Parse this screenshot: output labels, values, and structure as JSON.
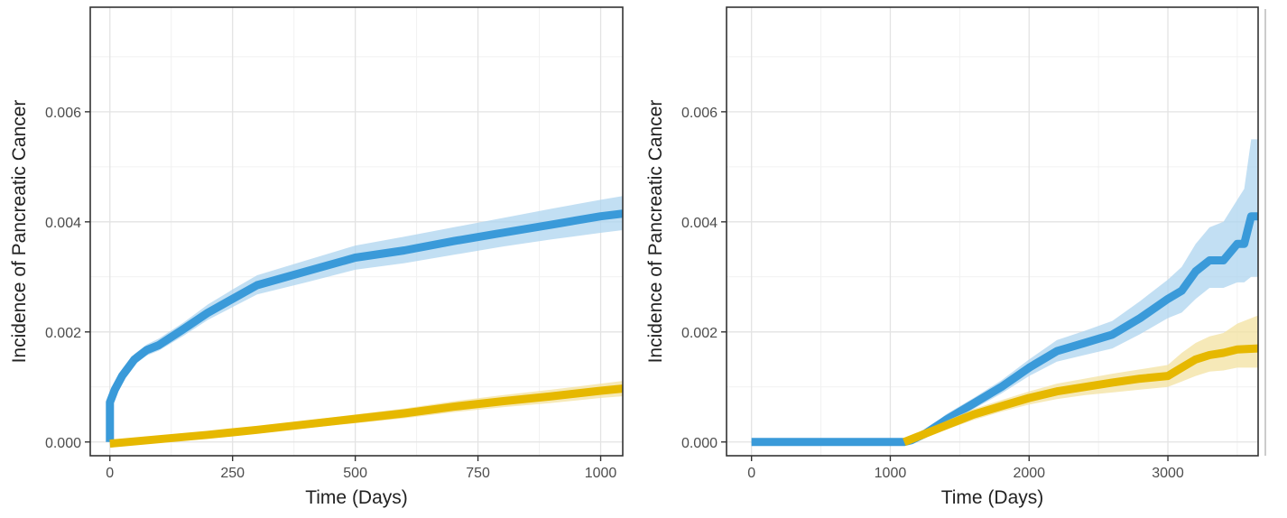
{
  "colors": {
    "series_a": "#3a9ad9",
    "series_a_band": "#aed4ef",
    "series_b": "#e6b800",
    "series_b_band": "#f3e1a0"
  },
  "chart_data": [
    {
      "type": "line",
      "xlabel": "Time (Days)",
      "ylabel": "Incidence of Pancreatic Cancer",
      "xlim": [
        -40,
        1045
      ],
      "ylim": [
        -0.00025,
        0.0079
      ],
      "xticks": [
        0,
        250,
        500,
        750,
        1000
      ],
      "xtick_labels": [
        "0",
        "250",
        "500",
        "750",
        "1000"
      ],
      "yticks": [
        0,
        0.002,
        0.004,
        0.006
      ],
      "ytick_labels": [
        "0.000",
        "0.002",
        "0.004",
        "0.006"
      ],
      "grid": true,
      "series": [
        {
          "color": "series_a",
          "x": [
            0,
            0,
            10,
            25,
            50,
            75,
            100,
            150,
            200,
            250,
            300,
            400,
            500,
            600,
            700,
            800,
            900,
            1000,
            1045
          ],
          "y": [
            0,
            0.00072,
            0.00095,
            0.0012,
            0.0015,
            0.00167,
            0.00176,
            0.00205,
            0.00235,
            0.0026,
            0.00285,
            0.0031,
            0.00335,
            0.00348,
            0.00365,
            0.0038,
            0.00395,
            0.0041,
            0.00415
          ],
          "lower": [
            0,
            0.00062,
            0.00085,
            0.0011,
            0.0014,
            0.00157,
            0.00166,
            0.00193,
            0.00222,
            0.00245,
            0.00268,
            0.0029,
            0.00313,
            0.00325,
            0.0034,
            0.00355,
            0.00368,
            0.0038,
            0.00385
          ],
          "upper": [
            0,
            0.00082,
            0.00105,
            0.0013,
            0.0016,
            0.00177,
            0.00188,
            0.00217,
            0.0025,
            0.00277,
            0.00303,
            0.0033,
            0.00357,
            0.00373,
            0.0039,
            0.00407,
            0.00424,
            0.0044,
            0.00447
          ]
        },
        {
          "color": "series_b",
          "x": [
            0,
            100,
            200,
            300,
            400,
            500,
            600,
            700,
            800,
            900,
            1000,
            1045
          ],
          "y": [
            -3e-05,
            5e-05,
            0.00013,
            0.00022,
            0.00032,
            0.00042,
            0.00052,
            0.00064,
            0.00074,
            0.00083,
            0.00093,
            0.00097
          ],
          "lower": [
            -8e-05,
            0.0,
            7e-05,
            0.00016,
            0.00025,
            0.00034,
            0.00043,
            0.00054,
            0.00063,
            0.00071,
            0.0008,
            0.00083
          ],
          "upper": [
            2e-05,
            0.0001,
            0.00019,
            0.00028,
            0.00039,
            0.0005,
            0.00061,
            0.00074,
            0.00085,
            0.00095,
            0.00106,
            0.00111
          ]
        }
      ]
    },
    {
      "type": "line",
      "xlabel": "Time (Days)",
      "ylabel": "Incidence of Pancreatic Cancer",
      "xlim": [
        -180,
        3650
      ],
      "ylim": [
        -0.00025,
        0.0079
      ],
      "xticks": [
        0,
        1000,
        2000,
        3000
      ],
      "xtick_labels": [
        "0",
        "1000",
        "2000",
        "3000"
      ],
      "yticks": [
        0,
        0.002,
        0.004,
        0.006
      ],
      "ytick_labels": [
        "0.000",
        "0.002",
        "0.004",
        "0.006"
      ],
      "grid": true,
      "series": [
        {
          "color": "series_a",
          "x": [
            0,
            1100,
            1150,
            1250,
            1400,
            1600,
            1800,
            2000,
            2200,
            2400,
            2600,
            2800,
            3000,
            3100,
            3200,
            3300,
            3400,
            3500,
            3550,
            3600,
            3650
          ],
          "y": [
            0,
            0,
            3e-05,
            0.00015,
            0.0004,
            0.0007,
            0.001,
            0.00135,
            0.00165,
            0.0018,
            0.00195,
            0.00225,
            0.0026,
            0.00275,
            0.0031,
            0.0033,
            0.0033,
            0.0036,
            0.0036,
            0.0041,
            0.0041
          ],
          "lower": [
            0,
            0,
            0.0,
            0.0001,
            0.0003,
            0.0006,
            0.00088,
            0.0012,
            0.00146,
            0.00158,
            0.0017,
            0.00196,
            0.00225,
            0.00235,
            0.0026,
            0.0028,
            0.0028,
            0.0029,
            0.0029,
            0.003,
            0.003
          ],
          "upper": [
            0,
            0,
            6e-05,
            0.0002,
            0.0005,
            0.0008,
            0.00112,
            0.0015,
            0.00185,
            0.00202,
            0.0022,
            0.00256,
            0.00295,
            0.00318,
            0.0036,
            0.0039,
            0.004,
            0.0044,
            0.0046,
            0.0055,
            0.0055
          ]
        },
        {
          "color": "series_b",
          "x": [
            1100,
            1200,
            1400,
            1600,
            1800,
            2000,
            2200,
            2400,
            2600,
            2800,
            3000,
            3100,
            3200,
            3300,
            3400,
            3500,
            3650
          ],
          "y": [
            0,
            0.0001,
            0.0003,
            0.0005,
            0.00065,
            0.0008,
            0.00092,
            0.001,
            0.00108,
            0.00115,
            0.0012,
            0.00135,
            0.0015,
            0.00158,
            0.00162,
            0.00168,
            0.0017
          ],
          "lower": [
            0,
            6e-05,
            0.00022,
            0.0004,
            0.00055,
            0.00068,
            0.00078,
            0.00085,
            0.0009,
            0.00095,
            0.001,
            0.0011,
            0.0012,
            0.00128,
            0.0013,
            0.00135,
            0.00135
          ],
          "upper": [
            0,
            0.00014,
            0.00038,
            0.0006,
            0.00076,
            0.00092,
            0.00106,
            0.00115,
            0.00124,
            0.00132,
            0.0014,
            0.00162,
            0.0018,
            0.00192,
            0.00198,
            0.00215,
            0.0023
          ]
        }
      ]
    }
  ]
}
